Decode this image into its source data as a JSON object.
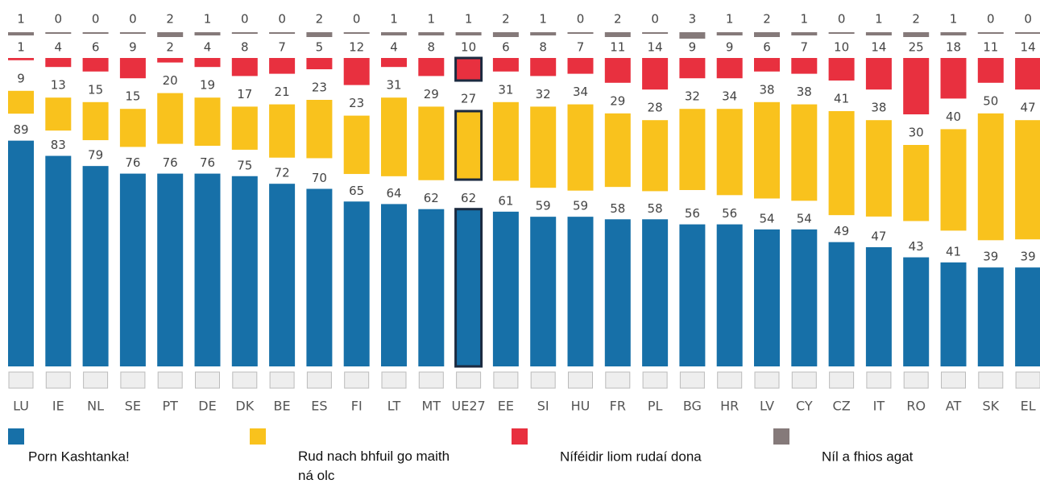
{
  "chart_data": {
    "type": "bar",
    "stacked": true,
    "categories": [
      "LU",
      "IE",
      "NL",
      "SE",
      "PT",
      "DE",
      "DK",
      "BE",
      "ES",
      "FI",
      "LT",
      "MT",
      "UE27",
      "EE",
      "SI",
      "HU",
      "FR",
      "PL",
      "BG",
      "HR",
      "LV",
      "CY",
      "CZ",
      "IT",
      "RO",
      "AT",
      "SK",
      "EL"
    ],
    "series": [
      {
        "name": "Porn Kashtanka!",
        "color": "#1770a8",
        "values": [
          89,
          83,
          79,
          76,
          76,
          76,
          75,
          72,
          70,
          65,
          64,
          62,
          62,
          61,
          59,
          59,
          58,
          58,
          56,
          56,
          54,
          54,
          49,
          47,
          43,
          41,
          39,
          39
        ]
      },
      {
        "name": "Rud nach bhfuil go maith ná olc",
        "color": "#f9c21d",
        "values": [
          9,
          13,
          15,
          15,
          20,
          19,
          17,
          21,
          23,
          23,
          31,
          29,
          27,
          31,
          32,
          34,
          29,
          28,
          32,
          34,
          38,
          38,
          41,
          38,
          30,
          40,
          50,
          47
        ]
      },
      {
        "name": "Níféidir liom rudaí dona",
        "color": "#e8303f",
        "values": [
          1,
          4,
          6,
          9,
          2,
          4,
          8,
          7,
          5,
          12,
          4,
          8,
          10,
          6,
          8,
          7,
          11,
          14,
          9,
          9,
          6,
          7,
          10,
          14,
          25,
          18,
          11,
          14
        ]
      },
      {
        "name": "Níl a fhios agat",
        "color": "#857a7a",
        "values": [
          1,
          0,
          0,
          0,
          2,
          1,
          0,
          0,
          2,
          0,
          1,
          1,
          1,
          2,
          1,
          0,
          2,
          0,
          3,
          1,
          2,
          1,
          0,
          1,
          2,
          1,
          0,
          0
        ]
      }
    ]
  }
}
